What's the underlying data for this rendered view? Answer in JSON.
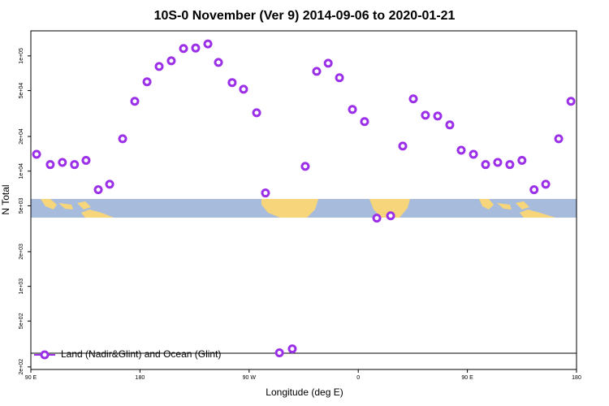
{
  "chart_data": {
    "type": "scatter",
    "title": "10S-0 November (Ver 9)   2014-09-06 to 2020-01-21",
    "x_label": "Longitude (deg E)",
    "y_label": "N Total",
    "log_y": true,
    "legend": "lower left",
    "xlim": [
      90,
      540
    ],
    "ylim": [
      190,
      165000
    ],
    "xticks": [
      {
        "value": 90,
        "label": "90 E"
      },
      180,
      {
        "value": 270,
        "label": "90 W"
      },
      {
        "value": 360,
        "label": "0"
      },
      {
        "value": 450,
        "label": "90 E"
      },
      {
        "value": 540,
        "label": "180"
      }
    ],
    "yticks": [
      {
        "value": 200,
        "label": "2e+02"
      },
      {
        "value": 500,
        "label": "5e+02"
      },
      {
        "value": 1000,
        "label": "1e+03"
      },
      {
        "value": 2000,
        "label": "2e+03"
      },
      {
        "value": 5000,
        "label": "5e+03"
      },
      {
        "value": 10000,
        "label": "1e+04"
      },
      {
        "value": 20000,
        "label": "2e+04"
      },
      {
        "value": 50000,
        "label": "5e+04"
      },
      {
        "value": 100000,
        "label": "1e+05"
      }
    ],
    "series": [
      {
        "name": "Land (Nadir&Glint) and Ocean (Glint)",
        "color": "#9b30e8",
        "x": [
          94.7,
          106,
          116,
          126,
          135.5,
          145.6,
          155,
          165.7,
          175.7,
          185.8,
          195.8,
          205.8,
          215.9,
          225.9,
          236,
          244.7,
          256,
          265.4,
          276.2,
          283.5,
          295,
          305.6,
          316.3,
          325.7,
          335.2,
          344.5,
          355.2,
          365.2,
          375.3,
          386.7,
          396.7,
          405.4,
          415.4,
          425.5,
          435.5,
          444.9,
          455,
          465,
          475,
          485,
          495,
          505,
          514.6,
          525.3,
          535.4
        ],
        "values": [
          14000,
          11400,
          11900,
          11400,
          12400,
          6900,
          7700,
          19100,
          40400,
          59600,
          81000,
          90700,
          116000,
          117000,
          127000,
          87800,
          58700,
          51400,
          32100,
          6460,
          265,
          287,
          11000,
          73500,
          86400,
          64600,
          34300,
          26900,
          3910,
          4100,
          16500,
          42400,
          30600,
          30100,
          25200,
          15200,
          14000,
          11400,
          11900,
          11400,
          12400,
          6900,
          7700,
          19100,
          40400
        ]
      }
    ]
  }
}
